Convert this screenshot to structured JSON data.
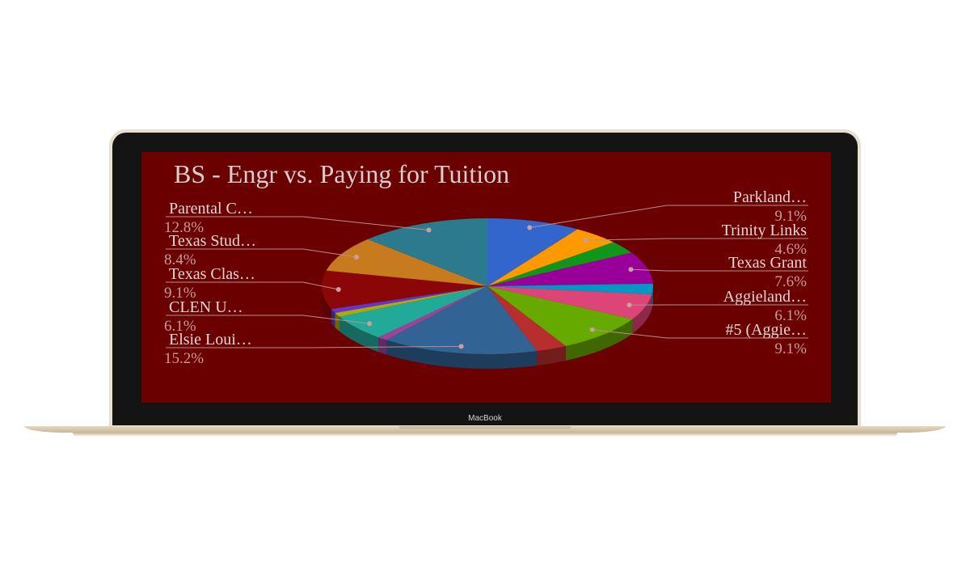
{
  "device": {
    "brand": "MacBook"
  },
  "chart_data": {
    "type": "pie",
    "title": "BS - Engr  vs.  Paying for Tuition",
    "legend": "none",
    "slices": [
      {
        "label": "Parkland…",
        "value": 9.1,
        "percent": "9.1%",
        "color": "#3366cc",
        "side": "right"
      },
      {
        "label": "Trinity Links",
        "value": 4.6,
        "percent": "4.6%",
        "color": "#ff9900",
        "side": "right"
      },
      {
        "label": "",
        "value": 3.0,
        "percent": "",
        "color": "#109618",
        "side": "none"
      },
      {
        "label": "Texas Grant",
        "value": 7.6,
        "percent": "7.6%",
        "color": "#990099",
        "side": "right"
      },
      {
        "label": "",
        "value": 2.5,
        "percent": "",
        "color": "#0099c6",
        "side": "none"
      },
      {
        "label": "Aggieland…",
        "value": 6.1,
        "percent": "6.1%",
        "color": "#dd4477",
        "side": "right"
      },
      {
        "label": "#5 (Aggie…",
        "value": 9.1,
        "percent": "9.1%",
        "color": "#66aa00",
        "side": "right"
      },
      {
        "label": "",
        "value": 3.0,
        "percent": "",
        "color": "#b82e2e",
        "side": "none"
      },
      {
        "label": "Elsie Loui…",
        "value": 15.2,
        "percent": "15.2%",
        "color": "#316395",
        "side": "left"
      },
      {
        "label": "",
        "value": 1.0,
        "percent": "",
        "color": "#994499",
        "side": "none"
      },
      {
        "label": "CLEN U…",
        "value": 6.1,
        "percent": "6.1%",
        "color": "#22aa99",
        "side": "left"
      },
      {
        "label": "",
        "value": 1.0,
        "percent": "",
        "color": "#aaaa11",
        "side": "none"
      },
      {
        "label": "",
        "value": 1.0,
        "percent": "",
        "color": "#6633cc",
        "side": "none"
      },
      {
        "label": "Texas Clas…",
        "value": 9.1,
        "percent": "9.1%",
        "color": "#8b0707",
        "side": "left"
      },
      {
        "label": "Texas Stud…",
        "value": 8.4,
        "percent": "8.4%",
        "color": "#c87a1e",
        "side": "left"
      },
      {
        "label": "Parental C…",
        "value": 12.8,
        "percent": "12.8%",
        "color": "#2b7a8e",
        "side": "left"
      }
    ]
  }
}
